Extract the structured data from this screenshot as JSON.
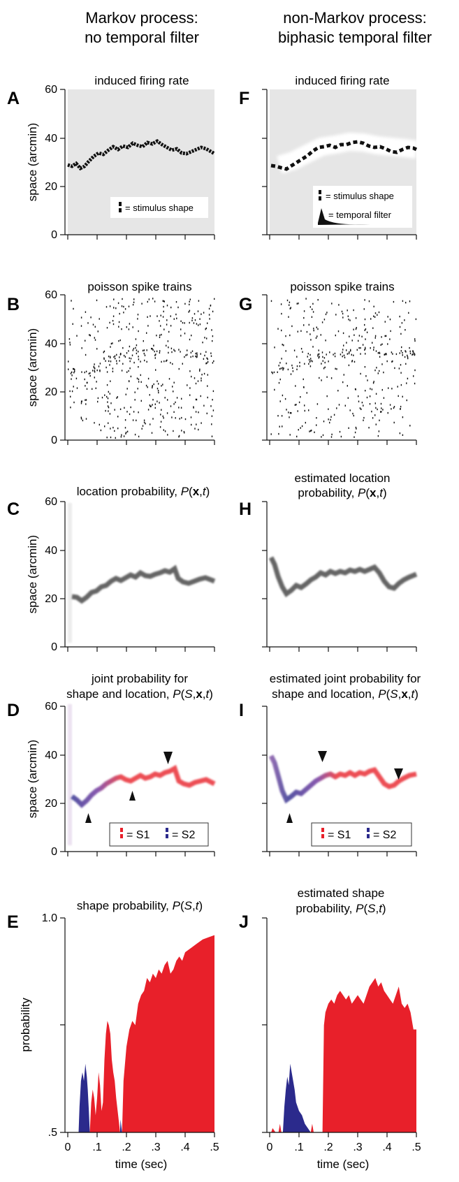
{
  "columns": {
    "left": {
      "line1": "Markov process:",
      "line2": "no temporal filter"
    },
    "right": {
      "line1": "non-Markov process:",
      "line2": "biphasic temporal filter"
    }
  },
  "axes": {
    "space_label": "space (arcmin)",
    "probability_label": "probability",
    "time_label": "time (sec)",
    "space_ticks": [
      "0",
      "20",
      "40",
      "60"
    ],
    "prob_ticks": [
      ".5",
      "1.0"
    ],
    "time_ticks": [
      "0",
      ".1",
      ".2",
      ".3",
      ".4",
      ".5"
    ]
  },
  "panels": {
    "A": {
      "letter": "A",
      "title": "induced firing rate"
    },
    "B": {
      "letter": "B",
      "title": "poisson spike trains"
    },
    "C": {
      "letter": "C",
      "title_prefix": "location probability, ",
      "title_math": "P(x,t)"
    },
    "D": {
      "letter": "D",
      "title1": "joint probability for",
      "title2_prefix": "shape and location, ",
      "title_math": "P(S,x,t)"
    },
    "E": {
      "letter": "E",
      "title_prefix": "shape probability, ",
      "title_math": "P(S,t)"
    },
    "F": {
      "letter": "F",
      "title": "induced firing rate"
    },
    "G": {
      "letter": "G",
      "title": "poisson spike trains"
    },
    "H": {
      "letter": "H",
      "title1": "estimated location",
      "title2_prefix": "probability, ",
      "title_math": "P(x,t)"
    },
    "I": {
      "letter": "I",
      "title1": "estimated joint probability for",
      "title2_prefix": "shape and location, ",
      "title_math": "P(S,x,t)"
    },
    "J": {
      "letter": "J",
      "title1": "estimated shape",
      "title2_prefix": "probability, ",
      "title_math": "P(S,t)"
    }
  },
  "legends": {
    "stimulus_shape": "= stimulus shape",
    "temporal_filter": "= temporal filter",
    "s1": "= S1",
    "s2": "= S2"
  },
  "colors": {
    "s1": "#e8202a",
    "s2": "#2b2a8c",
    "background_gray": "#e6e6e6"
  },
  "chart_data": [
    {
      "panel": "E",
      "type": "area",
      "title": "shape probability, P(S,t)",
      "xlabel": "time (sec)",
      "ylabel": "probability",
      "xlim": [
        0,
        0.5
      ],
      "ylim": [
        0.5,
        1.0
      ],
      "series": [
        {
          "name": "S2",
          "color": "#2b2a8c",
          "segments": [
            [
              [
                0.037,
                0.5
              ],
              [
                0.04,
                0.56
              ],
              [
                0.045,
                0.62
              ],
              [
                0.05,
                0.64
              ],
              [
                0.055,
                0.62
              ],
              [
                0.06,
                0.66
              ],
              [
                0.065,
                0.63
              ],
              [
                0.068,
                0.6
              ],
              [
                0.072,
                0.55
              ],
              [
                0.075,
                0.5
              ]
            ],
            [
              [
                0.178,
                0.5
              ],
              [
                0.18,
                0.53
              ],
              [
                0.185,
                0.5
              ]
            ]
          ]
        },
        {
          "name": "S1",
          "color": "#e8202a",
          "segments": [
            [
              [
                0.075,
                0.5
              ],
              [
                0.08,
                0.57
              ],
              [
                0.085,
                0.6
              ],
              [
                0.09,
                0.58
              ],
              [
                0.095,
                0.54
              ],
              [
                0.1,
                0.58
              ],
              [
                0.105,
                0.64
              ],
              [
                0.11,
                0.61
              ],
              [
                0.115,
                0.55
              ],
              [
                0.12,
                0.57
              ],
              [
                0.125,
                0.67
              ],
              [
                0.13,
                0.73
              ],
              [
                0.135,
                0.76
              ],
              [
                0.14,
                0.75
              ],
              [
                0.145,
                0.73
              ],
              [
                0.15,
                0.67
              ],
              [
                0.155,
                0.64
              ],
              [
                0.16,
                0.62
              ],
              [
                0.165,
                0.58
              ],
              [
                0.17,
                0.55
              ],
              [
                0.175,
                0.52
              ],
              [
                0.178,
                0.5
              ]
            ],
            [
              [
                0.185,
                0.5
              ],
              [
                0.19,
                0.62
              ],
              [
                0.2,
                0.7
              ],
              [
                0.21,
                0.74
              ],
              [
                0.22,
                0.76
              ],
              [
                0.23,
                0.75
              ],
              [
                0.24,
                0.8
              ],
              [
                0.25,
                0.82
              ],
              [
                0.26,
                0.83
              ],
              [
                0.27,
                0.86
              ],
              [
                0.28,
                0.85
              ],
              [
                0.29,
                0.87
              ],
              [
                0.3,
                0.86
              ],
              [
                0.31,
                0.88
              ],
              [
                0.32,
                0.87
              ],
              [
                0.33,
                0.89
              ],
              [
                0.34,
                0.9
              ],
              [
                0.35,
                0.87
              ],
              [
                0.36,
                0.88
              ],
              [
                0.37,
                0.9
              ],
              [
                0.38,
                0.91
              ],
              [
                0.39,
                0.9
              ],
              [
                0.4,
                0.92
              ],
              [
                0.42,
                0.93
              ],
              [
                0.44,
                0.94
              ],
              [
                0.46,
                0.95
              ],
              [
                0.48,
                0.955
              ],
              [
                0.5,
                0.96
              ]
            ]
          ]
        }
      ]
    },
    {
      "panel": "J",
      "type": "area",
      "title": "estimated shape probability, P(S,t)",
      "xlabel": "time (sec)",
      "xlim": [
        0,
        0.5
      ],
      "ylim": [
        0.5,
        1.0
      ],
      "series": [
        {
          "name": "S2",
          "color": "#2b2a8c",
          "segments": [
            [
              [
                0.045,
                0.5
              ],
              [
                0.05,
                0.56
              ],
              [
                0.055,
                0.6
              ],
              [
                0.06,
                0.63
              ],
              [
                0.065,
                0.61
              ],
              [
                0.07,
                0.66
              ],
              [
                0.075,
                0.64
              ],
              [
                0.08,
                0.62
              ],
              [
                0.085,
                0.6
              ],
              [
                0.09,
                0.57
              ],
              [
                0.1,
                0.55
              ],
              [
                0.11,
                0.54
              ],
              [
                0.12,
                0.52
              ],
              [
                0.13,
                0.51
              ],
              [
                0.14,
                0.5
              ]
            ]
          ]
        },
        {
          "name": "S1",
          "color": "#e8202a",
          "segments": [
            [
              [
                0.005,
                0.5
              ],
              [
                0.01,
                0.51
              ],
              [
                0.02,
                0.5
              ]
            ],
            [
              [
                0.03,
                0.5
              ],
              [
                0.035,
                0.52
              ],
              [
                0.04,
                0.5
              ]
            ],
            [
              [
                0.14,
                0.5
              ],
              [
                0.145,
                0.52
              ],
              [
                0.15,
                0.5
              ]
            ],
            [
              [
                0.18,
                0.5
              ],
              [
                0.185,
                0.75
              ],
              [
                0.19,
                0.78
              ],
              [
                0.2,
                0.8
              ],
              [
                0.21,
                0.81
              ],
              [
                0.22,
                0.8
              ],
              [
                0.23,
                0.82
              ],
              [
                0.24,
                0.83
              ],
              [
                0.25,
                0.82
              ],
              [
                0.26,
                0.81
              ],
              [
                0.27,
                0.82
              ],
              [
                0.28,
                0.8
              ],
              [
                0.29,
                0.81
              ],
              [
                0.3,
                0.82
              ],
              [
                0.31,
                0.81
              ],
              [
                0.32,
                0.8
              ],
              [
                0.33,
                0.82
              ],
              [
                0.34,
                0.84
              ],
              [
                0.35,
                0.85
              ],
              [
                0.36,
                0.86
              ],
              [
                0.37,
                0.84
              ],
              [
                0.38,
                0.85
              ],
              [
                0.39,
                0.83
              ],
              [
                0.4,
                0.82
              ],
              [
                0.41,
                0.81
              ],
              [
                0.42,
                0.8
              ],
              [
                0.43,
                0.82
              ],
              [
                0.44,
                0.84
              ],
              [
                0.45,
                0.8
              ],
              [
                0.46,
                0.79
              ],
              [
                0.47,
                0.8
              ],
              [
                0.48,
                0.78
              ],
              [
                0.49,
                0.74
              ],
              [
                0.5,
                0.74
              ]
            ]
          ]
        }
      ]
    }
  ]
}
